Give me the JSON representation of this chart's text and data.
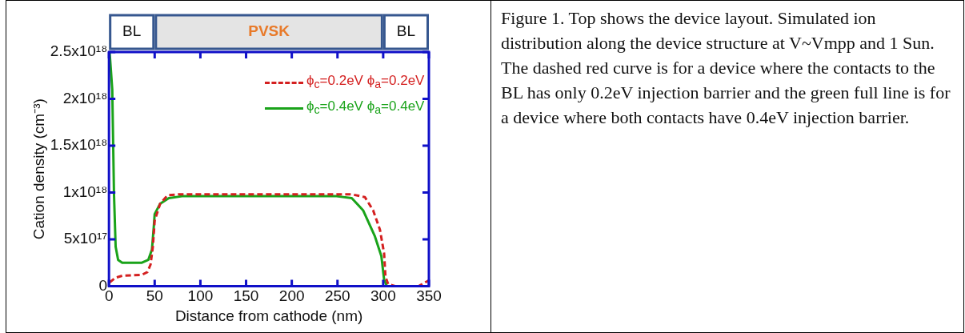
{
  "chart_data": {
    "type": "line",
    "xlabel": "Distance from cathode (nm)",
    "ylabel": "Cation density (cm⁻³)",
    "xlim": [
      0,
      350
    ],
    "xticks": [
      0,
      50,
      100,
      150,
      200,
      250,
      300,
      350
    ],
    "ylim": [
      0,
      2.5e+18
    ],
    "yticks": [
      0,
      {
        "value": 5e+17,
        "label": "5x10¹⁷"
      },
      {
        "value": 1e+18,
        "label": "1x10¹⁸"
      },
      {
        "value": 1.5e+18,
        "label": "1.5x10¹⁸"
      },
      {
        "value": 2e+18,
        "label": "2x10¹⁸"
      },
      {
        "value": 2.5e+18,
        "label": "2.5x10¹⁸"
      }
    ],
    "grid": false,
    "legend": "top right",
    "marker": "none",
    "series": [
      {
        "name": "ϕ$_{c}$=0.2eV ϕ$_{a}$=0.2eV",
        "color": "#d42020",
        "line_style": "dashed",
        "x": [
          0.7,
          7.3,
          14.5,
          36,
          42,
          45.5,
          48,
          50,
          56,
          64,
          76,
          150,
          265.6,
          280,
          289,
          296.5,
          301,
          302.5,
          305.5,
          313,
          339,
          346,
          350
        ],
        "values": [
          4e+16,
          9e+16,
          1.1e+17,
          1.2e+17,
          1.5e+17,
          2.3e+17,
          4.2e+17,
          7e+17,
          8.8e+17,
          9.7e+17,
          9.8e+17,
          9.8e+17,
          9.8e+17,
          9.5e+17,
          8.1e+17,
          6e+17,
          3.5e+17,
          1e+17,
          2e+16,
          0,
          0,
          4e+16,
          6e+16
        ]
      },
      {
        "name": "ϕ$_{c}$=0.4eV ϕ$_{a}$=0.4eV",
        "color": "#1aa31a",
        "line_style": "solid",
        "x": [
          0.7,
          3.6,
          5.5,
          7.3,
          10,
          14.5,
          36,
          43,
          47,
          49,
          50,
          56,
          65.5,
          80,
          102,
          249,
          265.6,
          278,
          291,
          298,
          301,
          304
        ],
        "values": [
          2.5e+18,
          2.1e+18,
          9.8e+17,
          4.2e+17,
          2.8e+17,
          2.5e+17,
          2.5e+17,
          2.8e+17,
          3.9e+17,
          6.3e+17,
          7.7e+17,
          8.8e+17,
          9.4e+17,
          9.6e+17,
          9.6e+17,
          9.6e+17,
          9.4e+17,
          8.1e+17,
          5.3e+17,
          3.2e+17,
          7e+16,
          0
        ]
      }
    ],
    "annotations": [
      "BL",
      "PVSK",
      "BL",
      "Figure 1. Top shows the device layout. Simulated ion distribution along the device structure at V~Vmpp and 1 Sun. The dashed red curve is for a device where the contacts to the BL has only 0.2eV injection barrier and the green full line is for a device where both contacts have 0.4eV injection barrier."
    ]
  }
}
